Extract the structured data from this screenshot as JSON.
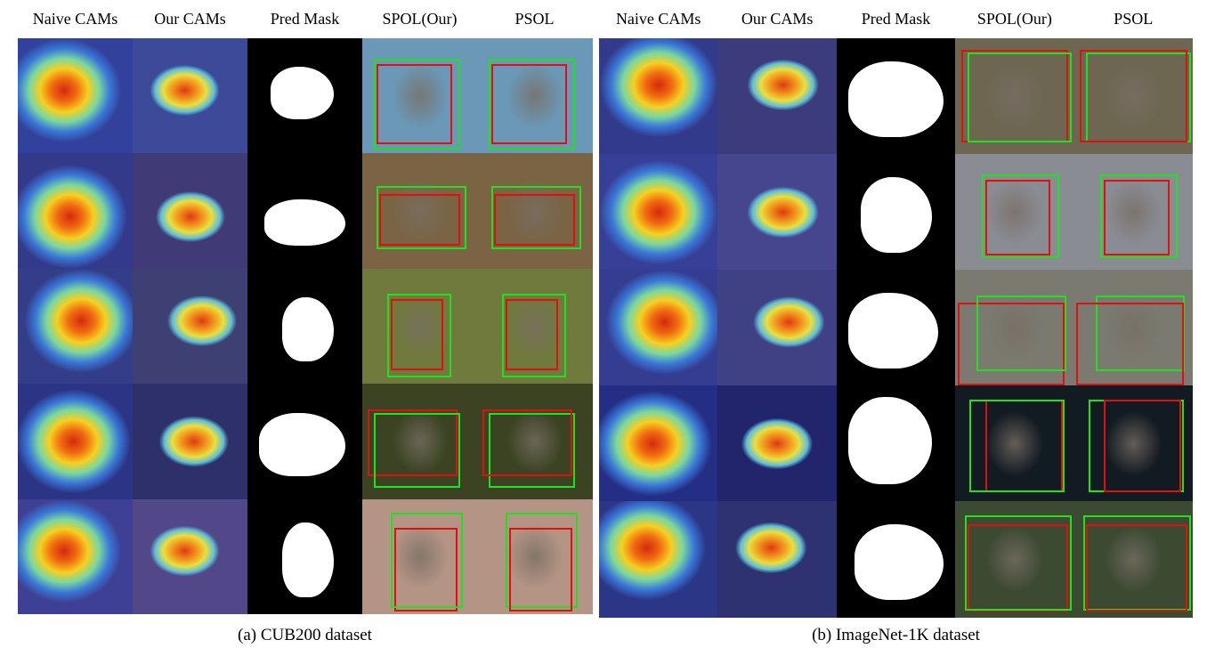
{
  "panels": [
    {
      "headers": [
        "Naive CAMs",
        "Our CAMs",
        "Pred Mask",
        "SPOL(Our)",
        "PSOL"
      ],
      "caption": "(a) CUB200 dataset"
    },
    {
      "headers": [
        "Naive CAMs",
        "Our CAMs",
        "Pred Mask",
        "SPOL(Our)",
        "PSOL"
      ],
      "caption": "(b) ImageNet-1K dataset"
    }
  ]
}
